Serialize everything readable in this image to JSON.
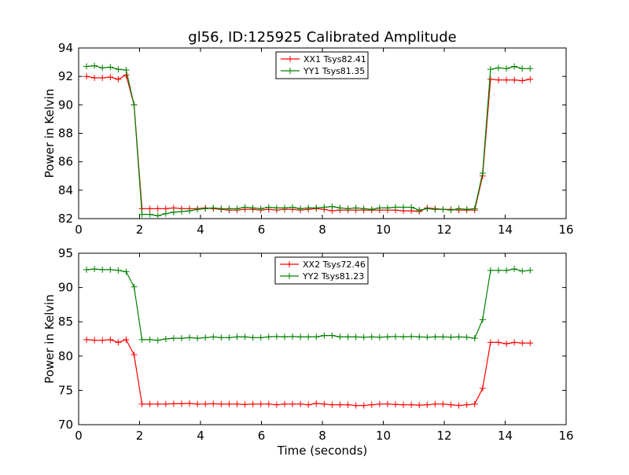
{
  "title": "gl56, ID:125925 Calibrated Amplitude",
  "chart_data": [
    {
      "type": "line",
      "ylabel": "Power in Kelvin",
      "xlabel": "",
      "xlim": [
        0,
        16
      ],
      "ylim": [
        82,
        94
      ],
      "xticks": [
        "0",
        "2",
        "4",
        "6",
        "8",
        "10",
        "12",
        "14",
        "16"
      ],
      "yticks": [
        "82",
        "84",
        "86",
        "88",
        "90",
        "92",
        "94"
      ],
      "legend_position": "top-center",
      "x": [
        0.26,
        0.52,
        0.78,
        1.04,
        1.3,
        1.56,
        1.82,
        2.08,
        2.34,
        2.6,
        2.86,
        3.12,
        3.38,
        3.64,
        3.9,
        4.16,
        4.42,
        4.68,
        4.94,
        5.2,
        5.46,
        5.72,
        5.98,
        6.24,
        6.5,
        6.76,
        7.02,
        7.28,
        7.54,
        7.8,
        8.06,
        8.32,
        8.58,
        8.84,
        9.1,
        9.36,
        9.62,
        9.88,
        10.14,
        10.4,
        10.66,
        10.92,
        11.18,
        11.44,
        11.7,
        11.96,
        12.22,
        12.48,
        12.74,
        13.0,
        13.26,
        13.52,
        13.78,
        14.04,
        14.3,
        14.56,
        14.82
      ],
      "series": [
        {
          "name": "XX1 Tsys82.41",
          "color": "#ff0000",
          "values": [
            92.0,
            91.9,
            91.9,
            91.95,
            91.8,
            92.1,
            90.0,
            82.7,
            82.7,
            82.7,
            82.7,
            82.75,
            82.7,
            82.7,
            82.7,
            82.75,
            82.7,
            82.65,
            82.6,
            82.6,
            82.65,
            82.65,
            82.6,
            82.65,
            82.6,
            82.65,
            82.65,
            82.6,
            82.65,
            82.7,
            82.65,
            82.55,
            82.6,
            82.6,
            82.6,
            82.6,
            82.6,
            82.6,
            82.6,
            82.6,
            82.55,
            82.55,
            82.5,
            82.75,
            82.7,
            82.65,
            82.65,
            82.6,
            82.6,
            82.6,
            85.0,
            91.8,
            91.75,
            91.75,
            91.75,
            91.7,
            91.8
          ]
        },
        {
          "name": "YY1 Tsys81.35",
          "color": "#008000",
          "values": [
            92.7,
            92.75,
            92.6,
            92.65,
            92.5,
            92.45,
            90.0,
            82.3,
            82.3,
            82.2,
            82.35,
            82.45,
            82.5,
            82.55,
            82.65,
            82.7,
            82.75,
            82.7,
            82.7,
            82.7,
            82.8,
            82.75,
            82.7,
            82.8,
            82.75,
            82.75,
            82.8,
            82.7,
            82.75,
            82.75,
            82.8,
            82.85,
            82.75,
            82.7,
            82.75,
            82.7,
            82.65,
            82.75,
            82.75,
            82.8,
            82.8,
            82.8,
            82.6,
            82.7,
            82.65,
            82.65,
            82.6,
            82.7,
            82.65,
            82.7,
            85.2,
            92.5,
            92.6,
            92.55,
            92.7,
            92.55,
            92.55
          ]
        }
      ]
    },
    {
      "type": "line",
      "ylabel": "Power in Kelvin",
      "xlabel": "Time (seconds)",
      "xlim": [
        0,
        16
      ],
      "ylim": [
        70,
        95
      ],
      "xticks": [
        "0",
        "2",
        "4",
        "6",
        "8",
        "10",
        "12",
        "14",
        "16"
      ],
      "yticks": [
        "70",
        "75",
        "80",
        "85",
        "90",
        "95"
      ],
      "legend_position": "top-center",
      "x": [
        0.26,
        0.52,
        0.78,
        1.04,
        1.3,
        1.56,
        1.82,
        2.08,
        2.34,
        2.6,
        2.86,
        3.12,
        3.38,
        3.64,
        3.9,
        4.16,
        4.42,
        4.68,
        4.94,
        5.2,
        5.46,
        5.72,
        5.98,
        6.24,
        6.5,
        6.76,
        7.02,
        7.28,
        7.54,
        7.8,
        8.06,
        8.32,
        8.58,
        8.84,
        9.1,
        9.36,
        9.62,
        9.88,
        10.14,
        10.4,
        10.66,
        10.92,
        11.18,
        11.44,
        11.7,
        11.96,
        12.22,
        12.48,
        12.74,
        13.0,
        13.26,
        13.52,
        13.78,
        14.04,
        14.3,
        14.56,
        14.82
      ],
      "series": [
        {
          "name": "XX2 Tsys72.46",
          "color": "#ff0000",
          "values": [
            82.4,
            82.3,
            82.3,
            82.4,
            82.0,
            82.4,
            80.2,
            73.0,
            73.0,
            73.0,
            73.0,
            73.05,
            73.05,
            73.1,
            73.0,
            73.0,
            73.05,
            73.0,
            73.0,
            73.0,
            72.95,
            73.0,
            73.0,
            73.0,
            72.9,
            73.0,
            73.0,
            73.0,
            72.9,
            73.1,
            73.0,
            72.9,
            72.9,
            72.9,
            72.8,
            72.8,
            72.9,
            73.0,
            73.0,
            72.95,
            72.9,
            72.9,
            72.85,
            72.9,
            73.0,
            73.0,
            72.9,
            72.8,
            72.9,
            73.0,
            75.3,
            82.0,
            82.0,
            81.8,
            82.0,
            81.9,
            81.9
          ]
        },
        {
          "name": "YY2 Tsys81.23",
          "color": "#008000",
          "values": [
            92.6,
            92.7,
            92.6,
            92.6,
            92.5,
            92.3,
            90.1,
            82.4,
            82.4,
            82.3,
            82.5,
            82.6,
            82.6,
            82.7,
            82.6,
            82.7,
            82.8,
            82.7,
            82.7,
            82.8,
            82.8,
            82.7,
            82.7,
            82.8,
            82.85,
            82.8,
            82.85,
            82.8,
            82.8,
            82.8,
            83.0,
            83.0,
            82.8,
            82.8,
            82.8,
            82.75,
            82.8,
            82.75,
            82.8,
            82.85,
            82.8,
            82.85,
            82.8,
            82.75,
            82.8,
            82.8,
            82.75,
            82.8,
            82.75,
            82.6,
            85.3,
            92.5,
            92.5,
            92.5,
            92.7,
            92.4,
            92.5
          ]
        }
      ]
    }
  ]
}
